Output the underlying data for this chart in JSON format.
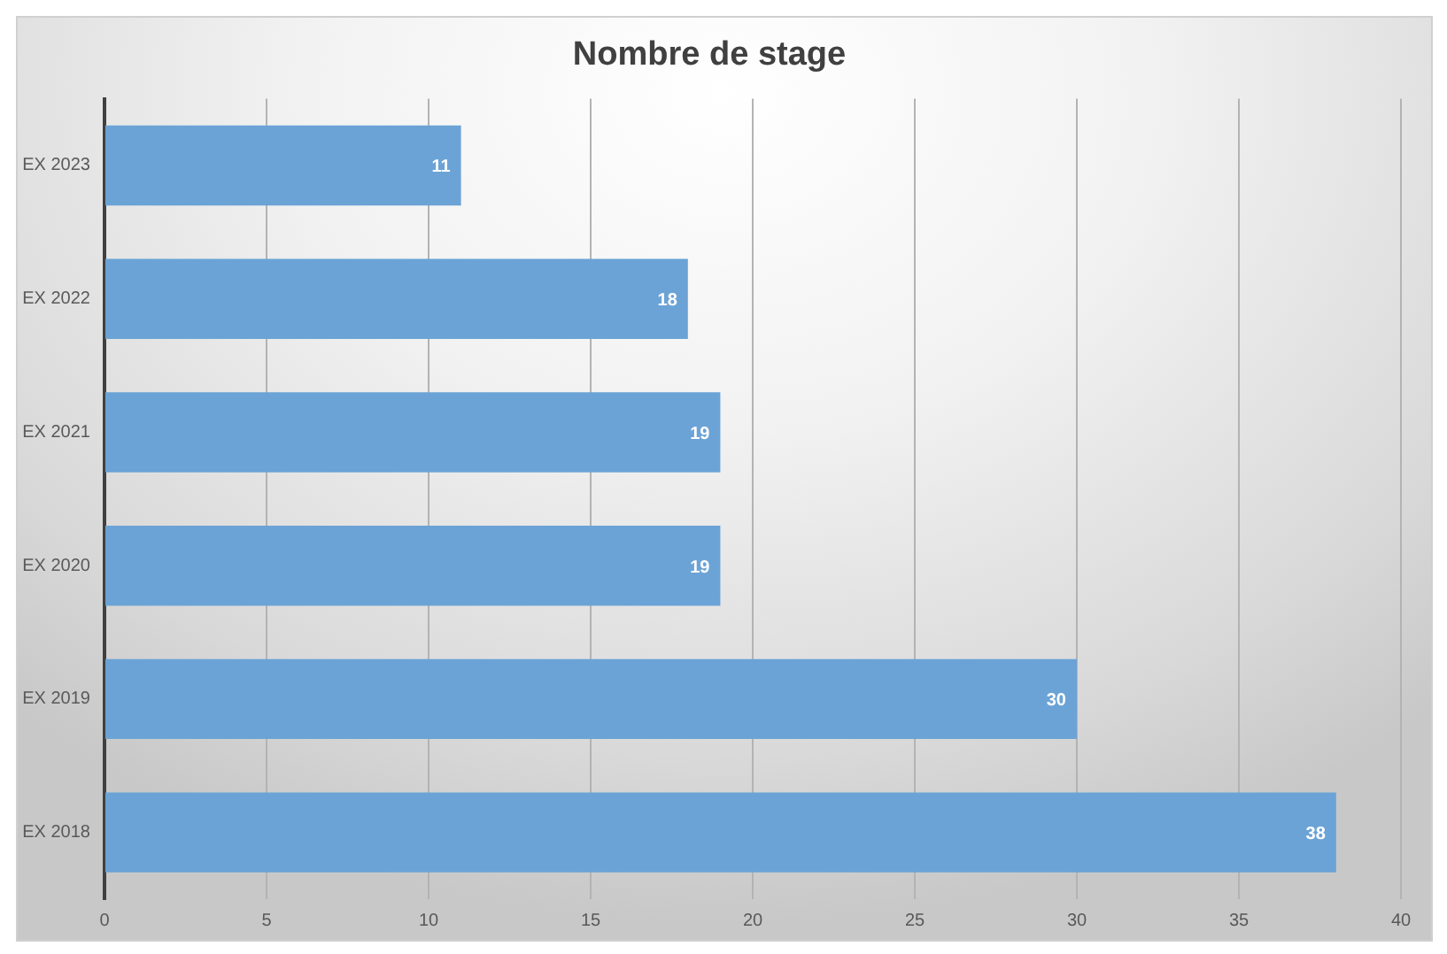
{
  "chart_data": {
    "type": "bar",
    "orientation": "horizontal",
    "title": "Nombre de stage",
    "categories": [
      "EX 2023",
      "EX 2022",
      "EX 2021",
      "EX 2020",
      "EX 2019",
      "EX 2018"
    ],
    "values": [
      11,
      18,
      19,
      19,
      30,
      38
    ],
    "color": "#6ba3d6",
    "xlim": [
      0,
      40
    ],
    "xticks": [
      0,
      5,
      10,
      15,
      20,
      25,
      30,
      35,
      40
    ],
    "grid": "x",
    "data_labels": true
  }
}
